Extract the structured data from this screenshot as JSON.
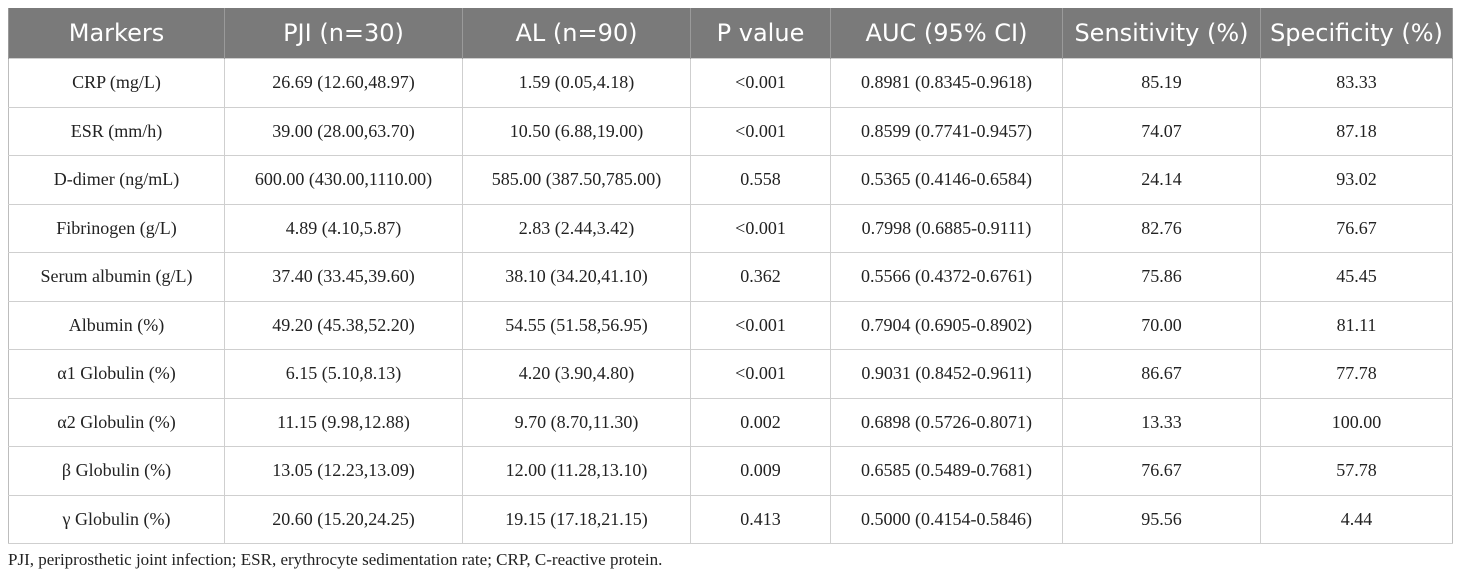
{
  "table": {
    "headers": [
      "Markers",
      "PJI (n=30)",
      "AL (n=90)",
      "P value",
      "AUC (95% CI)",
      "Sensitivity (%)",
      "Specificity (%)"
    ],
    "rows": [
      [
        "CRP (mg/L)",
        "26.69 (12.60,48.97)",
        "1.59 (0.05,4.18)",
        "<0.001",
        "0.8981 (0.8345-0.9618)",
        "85.19",
        "83.33"
      ],
      [
        "ESR (mm/h)",
        "39.00 (28.00,63.70)",
        "10.50 (6.88,19.00)",
        "<0.001",
        "0.8599 (0.7741-0.9457)",
        "74.07",
        "87.18"
      ],
      [
        "D-dimer (ng/mL)",
        "600.00 (430.00,1110.00)",
        "585.00 (387.50,785.00)",
        "0.558",
        "0.5365 (0.4146-0.6584)",
        "24.14",
        "93.02"
      ],
      [
        "Fibrinogen (g/L)",
        "4.89 (4.10,5.87)",
        "2.83 (2.44,3.42)",
        "<0.001",
        "0.7998 (0.6885-0.9111)",
        "82.76",
        "76.67"
      ],
      [
        "Serum albumin (g/L)",
        "37.40 (33.45,39.60)",
        "38.10 (34.20,41.10)",
        "0.362",
        "0.5566 (0.4372-0.6761)",
        "75.86",
        "45.45"
      ],
      [
        "Albumin (%)",
        "49.20 (45.38,52.20)",
        "54.55 (51.58,56.95)",
        "<0.001",
        "0.7904 (0.6905-0.8902)",
        "70.00",
        "81.11"
      ],
      [
        "α1 Globulin (%)",
        "6.15 (5.10,8.13)",
        "4.20 (3.90,4.80)",
        "<0.001",
        "0.9031 (0.8452-0.9611)",
        "86.67",
        "77.78"
      ],
      [
        "α2 Globulin (%)",
        "11.15 (9.98,12.88)",
        "9.70 (8.70,11.30)",
        "0.002",
        "0.6898 (0.5726-0.8071)",
        "13.33",
        "100.00"
      ],
      [
        "β Globulin (%)",
        "13.05 (12.23,13.09)",
        "12.00 (11.28,13.10)",
        "0.009",
        "0.6585 (0.5489-0.7681)",
        "76.67",
        "57.78"
      ],
      [
        "γ Globulin (%)",
        "20.60 (15.20,24.25)",
        "19.15 (17.18,21.15)",
        "0.413",
        "0.5000 (0.4154-0.5846)",
        "95.56",
        "4.44"
      ]
    ]
  },
  "footnote": "PJI, periprosthetic joint infection; ESR, erythrocyte sedimentation rate; CRP, C-reactive protein."
}
